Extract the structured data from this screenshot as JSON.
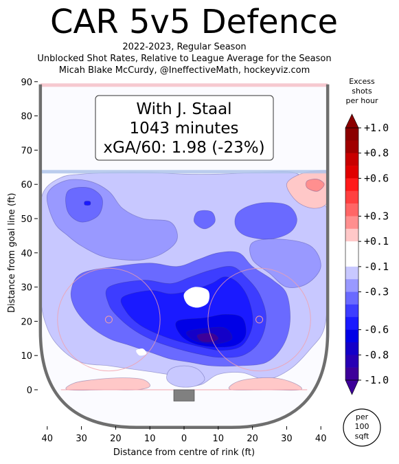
{
  "title": "CAR 5v5 Defence",
  "subtitle_lines": [
    "2022-2023, Regular Season",
    "Unblocked Shot Rates, Relative to League Average for the Season",
    "Micah Blake McCurdy, @IneffectiveMath, hockeyviz.com"
  ],
  "colors": {
    "rink_border": "#6e6e6e",
    "blue_line": "#aec3ea",
    "goal_line": "#f4c0c8",
    "net": "#808080",
    "excess_high": "#8b0000",
    "excess_low": "#3d0099"
  },
  "chart_data": {
    "type": "heatmap",
    "xlabel": "Distance from centre of rink (ft)",
    "ylabel": "Distance from goal line (ft)",
    "xlim": [
      -42,
      42
    ],
    "ylim": [
      -10,
      90
    ],
    "x_ticks": [
      -40,
      -30,
      -20,
      -10,
      0,
      10,
      20,
      30,
      40
    ],
    "x_tick_labels": [
      "40",
      "30",
      "20",
      "10",
      "0",
      "10",
      "20",
      "30",
      "40"
    ],
    "y_ticks": [
      0,
      10,
      20,
      30,
      40,
      50,
      60,
      70,
      80,
      90
    ],
    "y_tick_labels": [
      "0",
      "10",
      "20",
      "30",
      "40",
      "50",
      "60",
      "70",
      "80",
      "90"
    ],
    "annotation": {
      "lines": [
        "With J. Staal",
        "1043 minutes",
        "xGA/60: 1.98 (-23%)"
      ]
    },
    "colorbar": {
      "title_lines": [
        "Excess",
        "shots",
        "per hour"
      ],
      "tick_labels": [
        "+1.0",
        "+0.8",
        "+0.6",
        "+0.3",
        "+0.1",
        "-0.1",
        "-0.3",
        "-0.6",
        "-0.8",
        "-1.0"
      ],
      "tick_values": [
        1.0,
        0.8,
        0.6,
        0.3,
        0.1,
        -0.1,
        -0.3,
        -0.6,
        -0.8,
        -1.0
      ],
      "range": [
        -1.0,
        1.0
      ],
      "levels": [
        {
          "from": 0.9,
          "to": 1.0,
          "color": "#8b0000"
        },
        {
          "from": 0.8,
          "to": 0.9,
          "color": "#a00000"
        },
        {
          "from": 0.7,
          "to": 0.8,
          "color": "#c80000"
        },
        {
          "from": 0.6,
          "to": 0.7,
          "color": "#e00000"
        },
        {
          "from": 0.5,
          "to": 0.6,
          "color": "#ff1a1a"
        },
        {
          "from": 0.4,
          "to": 0.5,
          "color": "#ff4040"
        },
        {
          "from": 0.3,
          "to": 0.4,
          "color": "#ff6666"
        },
        {
          "from": 0.2,
          "to": 0.3,
          "color": "#ff8f8f"
        },
        {
          "from": 0.1,
          "to": 0.2,
          "color": "#ffc8c8"
        },
        {
          "from": -0.1,
          "to": 0.1,
          "color": "#ffffff"
        },
        {
          "from": -0.2,
          "to": -0.1,
          "color": "#c8c8ff"
        },
        {
          "from": -0.3,
          "to": -0.2,
          "color": "#9999ff"
        },
        {
          "from": -0.4,
          "to": -0.3,
          "color": "#6a6aff"
        },
        {
          "from": -0.5,
          "to": -0.4,
          "color": "#3d3dff"
        },
        {
          "from": -0.6,
          "to": -0.5,
          "color": "#1a1aff"
        },
        {
          "from": -0.7,
          "to": -0.6,
          "color": "#0000e6"
        },
        {
          "from": -0.8,
          "to": -0.7,
          "color": "#1400c8"
        },
        {
          "from": -0.9,
          "to": -0.8,
          "color": "#2800b4"
        },
        {
          "from": -1.0,
          "to": -0.9,
          "color": "#3d0099"
        }
      ]
    },
    "unit_badge_lines": [
      "per",
      "100",
      "sqft"
    ],
    "regions": [
      {
        "name": "outer-low-region",
        "level": -0.15,
        "points": [
          [
            -41,
            58
          ],
          [
            -36,
            62
          ],
          [
            -30,
            63
          ],
          [
            -20,
            63.5
          ],
          [
            -10,
            63.5
          ],
          [
            0,
            63
          ],
          [
            10,
            63
          ],
          [
            22,
            63.5
          ],
          [
            32,
            63.5
          ],
          [
            36,
            60
          ],
          [
            38,
            54
          ],
          [
            42,
            52
          ],
          [
            42,
            30
          ],
          [
            41,
            18
          ],
          [
            37,
            12
          ],
          [
            31,
            6
          ],
          [
            24,
            3
          ],
          [
            17,
            5
          ],
          [
            10,
            4.5
          ],
          [
            5,
            1.5
          ],
          [
            0,
            1.5
          ],
          [
            -3,
            4
          ],
          [
            -8,
            5
          ],
          [
            -15,
            6
          ],
          [
            -22,
            7
          ],
          [
            -30,
            8
          ],
          [
            -36,
            12
          ],
          [
            -40,
            18
          ],
          [
            -42,
            28
          ],
          [
            -42,
            50
          ]
        ]
      },
      {
        "name": "upper-left-mid-region",
        "level": -0.25,
        "points": [
          [
            -40,
            57
          ],
          [
            -35,
            61
          ],
          [
            -28,
            61
          ],
          [
            -22,
            58
          ],
          [
            -18,
            53
          ],
          [
            -12,
            50
          ],
          [
            -4,
            49
          ],
          [
            -2,
            44
          ],
          [
            -6,
            40
          ],
          [
            -12,
            38
          ],
          [
            -18,
            38
          ],
          [
            -24,
            39
          ],
          [
            -30,
            42
          ],
          [
            -34,
            45
          ],
          [
            -38,
            49
          ]
        ]
      },
      {
        "name": "upper-left-deep-region",
        "level": -0.35,
        "points": [
          [
            -34,
            58
          ],
          [
            -28,
            59
          ],
          [
            -24,
            56
          ],
          [
            -25,
            51
          ],
          [
            -30,
            49
          ],
          [
            -34,
            52
          ]
        ]
      },
      {
        "name": "upper-left-dot-region",
        "level": -0.55,
        "points": [
          [
            -29,
            55
          ],
          [
            -27.5,
            55
          ],
          [
            -27.5,
            54
          ],
          [
            -29,
            54
          ]
        ]
      },
      {
        "name": "upper-right-mid-region",
        "level": -0.35,
        "points": [
          [
            16,
            52
          ],
          [
            22,
            54.5
          ],
          [
            30,
            54
          ],
          [
            33,
            50
          ],
          [
            31,
            46
          ],
          [
            25,
            44
          ],
          [
            18,
            45
          ],
          [
            15,
            48
          ]
        ]
      },
      {
        "name": "centre-small-low-region",
        "level": -0.35,
        "points": [
          [
            4,
            52
          ],
          [
            8,
            52
          ],
          [
            9,
            49
          ],
          [
            6,
            47
          ],
          [
            3,
            49
          ]
        ]
      },
      {
        "name": "right-mid-band-region",
        "level": -0.25,
        "points": [
          [
            20,
            43
          ],
          [
            28,
            44
          ],
          [
            37,
            42
          ],
          [
            40,
            36
          ],
          [
            36,
            31
          ],
          [
            30,
            30
          ],
          [
            25,
            34
          ],
          [
            20,
            38
          ]
        ]
      },
      {
        "name": "slot-mid-region",
        "level": -0.35,
        "points": [
          [
            -30,
            34
          ],
          [
            -20,
            36
          ],
          [
            -10,
            37
          ],
          [
            -2,
            36
          ],
          [
            4,
            38
          ],
          [
            10,
            40
          ],
          [
            16,
            40
          ],
          [
            20,
            36
          ],
          [
            26,
            32
          ],
          [
            30,
            28
          ],
          [
            31,
            20
          ],
          [
            29,
            13
          ],
          [
            24,
            8
          ],
          [
            16,
            7
          ],
          [
            8,
            7
          ],
          [
            2,
            8
          ],
          [
            -4,
            9
          ],
          [
            -10,
            11
          ],
          [
            -16,
            13
          ],
          [
            -22,
            15
          ],
          [
            -28,
            19
          ],
          [
            -32,
            24
          ],
          [
            -33,
            29
          ]
        ]
      },
      {
        "name": "slot-deep-region",
        "level": -0.45,
        "points": [
          [
            -22,
            30
          ],
          [
            -12,
            32
          ],
          [
            -4,
            31
          ],
          [
            2,
            33
          ],
          [
            8,
            35
          ],
          [
            14,
            36
          ],
          [
            18,
            33
          ],
          [
            22,
            28
          ],
          [
            24,
            21
          ],
          [
            22,
            14
          ],
          [
            17,
            10
          ],
          [
            10,
            9.5
          ],
          [
            4,
            10.5
          ],
          [
            -2,
            12
          ],
          [
            -8,
            14
          ],
          [
            -14,
            17
          ],
          [
            -19,
            21
          ],
          [
            -22,
            25
          ]
        ]
      },
      {
        "name": "slot-deeper-region",
        "level": -0.6,
        "points": [
          [
            -18,
            27
          ],
          [
            -10,
            29
          ],
          [
            -4,
            28
          ],
          [
            2,
            29
          ],
          [
            8,
            31
          ],
          [
            12,
            33
          ],
          [
            16,
            31
          ],
          [
            19,
            26
          ],
          [
            20,
            19
          ],
          [
            17,
            13
          ],
          [
            11,
            11.5
          ],
          [
            5,
            12.5
          ],
          [
            -1,
            14
          ],
          [
            -7,
            16
          ],
          [
            -13,
            19
          ],
          [
            -17,
            23
          ]
        ]
      },
      {
        "name": "slot-core-region",
        "level": -0.7,
        "points": [
          [
            -2,
            20
          ],
          [
            6,
            21
          ],
          [
            12,
            22
          ],
          [
            17,
            21
          ],
          [
            18,
            16
          ],
          [
            15,
            13
          ],
          [
            9,
            12.5
          ],
          [
            3,
            13.5
          ],
          [
            -1,
            16
          ]
        ]
      },
      {
        "name": "slot-inner-region",
        "level": -0.8,
        "points": [
          [
            1,
            17
          ],
          [
            7,
            18
          ],
          [
            12,
            18
          ],
          [
            14,
            15
          ],
          [
            10,
            13.5
          ],
          [
            5,
            13.8
          ],
          [
            2,
            15
          ]
        ]
      },
      {
        "name": "slot-center-region",
        "level": -0.95,
        "points": [
          [
            4,
            16
          ],
          [
            8,
            16.5
          ],
          [
            10,
            15
          ],
          [
            8,
            14
          ],
          [
            5,
            14.2
          ]
        ]
      },
      {
        "name": "slot-white-hole-region",
        "level": 0.0,
        "points": [
          [
            0,
            28
          ],
          [
            3,
            30
          ],
          [
            7,
            29
          ],
          [
            7,
            25.5
          ],
          [
            4,
            24
          ],
          [
            1,
            25
          ]
        ]
      },
      {
        "name": "left-small-dot-region",
        "level": 0.0,
        "points": [
          [
            -14,
            11.5
          ],
          [
            -12,
            12
          ],
          [
            -11,
            10.5
          ],
          [
            -13,
            10
          ]
        ]
      },
      {
        "name": "crease-light-region",
        "level": -0.15,
        "points": [
          [
            -4,
            6
          ],
          [
            0,
            7
          ],
          [
            4,
            6
          ],
          [
            6,
            3
          ],
          [
            3,
            1
          ],
          [
            -2,
            1
          ],
          [
            -5,
            3
          ]
        ]
      },
      {
        "name": "upper-right-high-region",
        "level": 0.15,
        "points": [
          [
            30,
            60
          ],
          [
            34,
            63
          ],
          [
            40,
            64
          ],
          [
            42,
            63
          ],
          [
            42,
            55
          ],
          [
            38,
            53
          ],
          [
            33,
            55
          ]
        ]
      },
      {
        "name": "upper-right-high-core-region",
        "level": 0.25,
        "points": [
          [
            36,
            61
          ],
          [
            39,
            61.5
          ],
          [
            41,
            60
          ],
          [
            39,
            58
          ],
          [
            36,
            59
          ]
        ]
      },
      {
        "name": "goal-line-left-high-region",
        "level": 0.15,
        "points": [
          [
            -34,
            0
          ],
          [
            -22,
            0
          ],
          [
            -14,
            0
          ],
          [
            -10,
            1
          ],
          [
            -12,
            3
          ],
          [
            -18,
            3.5
          ],
          [
            -26,
            3
          ],
          [
            -32,
            2
          ]
        ]
      },
      {
        "name": "goal-line-right-high-region",
        "level": 0.15,
        "points": [
          [
            14,
            0
          ],
          [
            24,
            0
          ],
          [
            34,
            0
          ],
          [
            32,
            2
          ],
          [
            26,
            3.5
          ],
          [
            18,
            3
          ],
          [
            14,
            1.5
          ]
        ]
      }
    ]
  }
}
